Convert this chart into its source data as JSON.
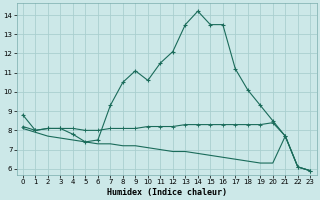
{
  "xlabel": "Humidex (Indice chaleur)",
  "bg_color": "#cce8e8",
  "grid_color": "#aacfcf",
  "line_color": "#1a6b5a",
  "xlim": [
    -0.5,
    23.5
  ],
  "ylim": [
    5.7,
    14.6
  ],
  "xticks": [
    0,
    1,
    2,
    3,
    4,
    5,
    6,
    7,
    8,
    9,
    10,
    11,
    12,
    13,
    14,
    15,
    16,
    17,
    18,
    19,
    20,
    21,
    22,
    23
  ],
  "yticks": [
    6,
    7,
    8,
    9,
    10,
    11,
    12,
    13,
    14
  ],
  "line1_x": [
    0,
    1,
    2,
    3,
    4,
    5,
    6,
    7,
    8,
    9,
    10,
    11,
    12,
    13,
    14,
    15,
    16,
    17,
    18,
    19,
    20,
    21,
    22,
    23
  ],
  "line1_y": [
    8.8,
    8.0,
    8.1,
    8.1,
    7.8,
    7.4,
    7.5,
    9.3,
    10.5,
    11.1,
    10.6,
    11.5,
    12.1,
    13.5,
    14.2,
    13.5,
    13.5,
    11.2,
    10.1,
    9.3,
    8.5,
    7.7,
    6.1,
    5.9
  ],
  "line2_x": [
    0,
    1,
    2,
    3,
    4,
    5,
    6,
    7,
    8,
    9,
    10,
    11,
    12,
    13,
    14,
    15,
    16,
    17,
    18,
    19,
    20,
    21,
    22,
    23
  ],
  "line2_y": [
    8.2,
    8.0,
    8.1,
    8.1,
    8.1,
    8.0,
    8.0,
    8.1,
    8.1,
    8.1,
    8.2,
    8.2,
    8.2,
    8.3,
    8.3,
    8.3,
    8.3,
    8.3,
    8.3,
    8.3,
    8.4,
    7.7,
    6.1,
    5.9
  ],
  "line3_x": [
    0,
    1,
    2,
    3,
    4,
    5,
    6,
    7,
    8,
    9,
    10,
    11,
    12,
    13,
    14,
    15,
    16,
    17,
    18,
    19,
    20,
    21,
    22,
    23
  ],
  "line3_y": [
    8.1,
    7.9,
    7.7,
    7.6,
    7.5,
    7.4,
    7.3,
    7.3,
    7.2,
    7.2,
    7.1,
    7.0,
    6.9,
    6.9,
    6.8,
    6.7,
    6.6,
    6.5,
    6.4,
    6.3,
    6.3,
    7.7,
    6.1,
    5.9
  ]
}
